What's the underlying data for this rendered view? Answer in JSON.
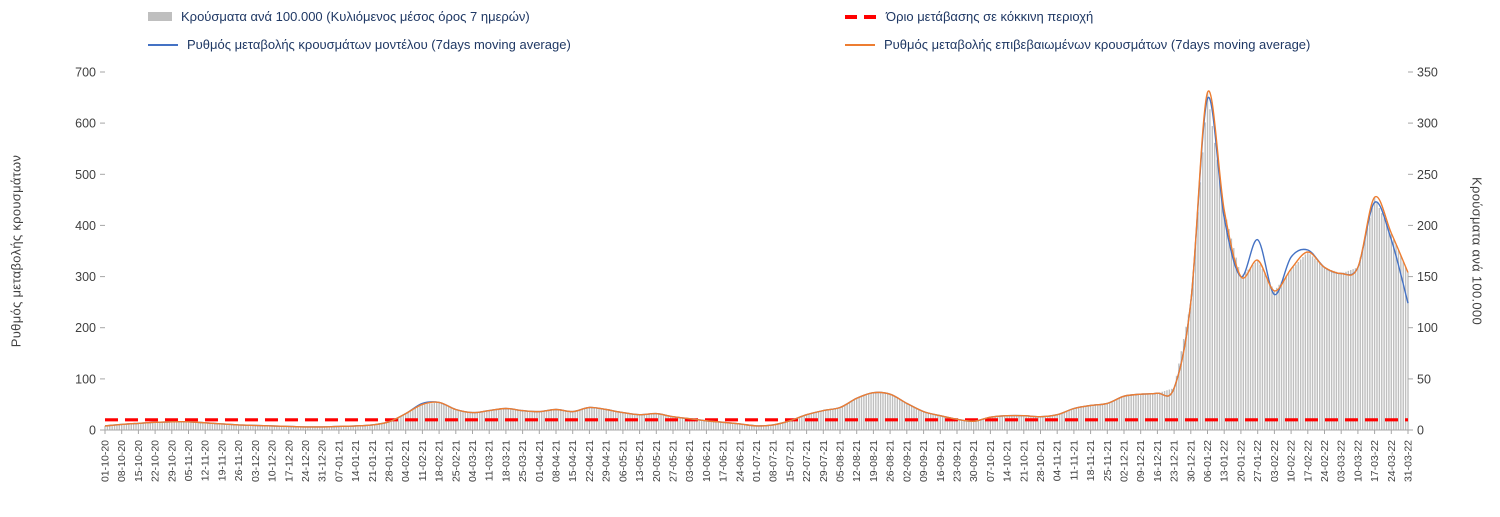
{
  "colors": {
    "bars": "#bfbfbf",
    "model": "#4472c4",
    "confirmed": "#ed7d31",
    "threshold": "#ff0000",
    "axis_text": "#404040",
    "legend_text": "#1f3864",
    "axis_line": "#a6a6a6"
  },
  "chart_data": {
    "type": "combo-bar-line",
    "legend_position": "top",
    "grid": false,
    "categories": [
      "01-10-20",
      "08-10-20",
      "15-10-20",
      "22-10-20",
      "29-10-20",
      "05-11-20",
      "12-11-20",
      "19-11-20",
      "26-11-20",
      "03-12-20",
      "10-12-20",
      "17-12-20",
      "24-12-20",
      "31-12-20",
      "07-01-21",
      "14-01-21",
      "21-01-21",
      "28-01-21",
      "04-02-21",
      "11-02-21",
      "18-02-21",
      "25-02-21",
      "04-03-21",
      "11-03-21",
      "18-03-21",
      "25-03-21",
      "01-04-21",
      "08-04-21",
      "15-04-21",
      "22-04-21",
      "29-04-21",
      "06-05-21",
      "13-05-21",
      "20-05-21",
      "27-05-21",
      "03-06-21",
      "10-06-21",
      "17-06-21",
      "24-06-21",
      "01-07-21",
      "08-07-21",
      "15-07-21",
      "22-07-21",
      "29-07-21",
      "05-08-21",
      "12-08-21",
      "19-08-21",
      "26-08-21",
      "02-09-21",
      "09-09-21",
      "16-09-21",
      "23-09-21",
      "30-09-21",
      "07-10-21",
      "14-10-21",
      "21-10-21",
      "28-10-21",
      "04-11-21",
      "11-11-21",
      "18-11-21",
      "25-11-21",
      "02-12-21",
      "09-12-21",
      "16-12-21",
      "23-12-21",
      "30-12-21",
      "06-01-22",
      "13-01-22",
      "20-01-22",
      "27-01-22",
      "03-02-22",
      "10-02-22",
      "17-02-22",
      "24-02-22",
      "03-03-22",
      "10-03-22",
      "17-03-22",
      "24-03-22",
      "31-03-22"
    ],
    "left_axis": {
      "label": "Ρυθμός μεταβολής κρουσμάτων",
      "min": 0,
      "max": 700,
      "ticks": [
        0,
        100,
        200,
        300,
        400,
        500,
        600,
        700
      ]
    },
    "right_axis": {
      "label": "Κρούσματα ανά 100.000",
      "min": 0,
      "max": 350,
      "ticks": [
        0,
        50,
        100,
        150,
        200,
        250,
        300,
        350
      ]
    },
    "series": [
      {
        "name": "Κρούσματα ανά 100.000 (Κυλιόμενος μέσος όρος 7 ημερών)",
        "type": "bar",
        "axis": "right",
        "values": [
          4,
          5.5,
          6.5,
          7.5,
          8,
          8,
          7,
          6,
          5,
          4.5,
          4,
          3.5,
          3,
          3,
          3.5,
          4,
          5,
          8,
          16,
          25,
          27,
          20,
          17,
          19,
          21,
          19,
          18,
          20,
          18,
          22,
          20,
          17,
          15,
          16,
          13,
          11,
          9,
          7.5,
          6,
          4,
          5,
          9,
          15,
          19,
          22,
          31,
          36.5,
          35,
          26,
          18,
          14,
          10.5,
          8.5,
          12.5,
          14,
          14,
          13,
          15,
          21,
          24,
          26,
          33,
          35,
          36,
          41,
          125,
          330,
          215,
          150,
          166,
          136,
          157,
          174,
          159,
          153,
          159,
          227,
          192,
          154
        ]
      },
      {
        "name": "Ρυθμός μεταβολής κρουσμάτων μοντέλου (7days moving average)",
        "type": "line",
        "axis": "left",
        "values": [
          8,
          11,
          13,
          15,
          16,
          16,
          14,
          12,
          10,
          9,
          8,
          7,
          6,
          6,
          7,
          8,
          10,
          16,
          32,
          52,
          54,
          40,
          34,
          38,
          42,
          38,
          36,
          40,
          36,
          44,
          40,
          34,
          30,
          32,
          26,
          22,
          18,
          15,
          12,
          8,
          10,
          18,
          30,
          38,
          44,
          62,
          73,
          70,
          52,
          36,
          28,
          21,
          17,
          25,
          28,
          28,
          26,
          30,
          42,
          48,
          52,
          66,
          70,
          72,
          82,
          250,
          648,
          415,
          300,
          372,
          265,
          338,
          352,
          318,
          306,
          318,
          445,
          372,
          248
        ]
      },
      {
        "name": "Ρυθμός μεταβολής επιβεβαιωμένων κρουσμάτων (7days moving average)",
        "type": "line",
        "axis": "left",
        "values": [
          8,
          11,
          13,
          15,
          16,
          16,
          14,
          12,
          10,
          9,
          8,
          7,
          6,
          6,
          7,
          8,
          10,
          16,
          32,
          50,
          54,
          40,
          34,
          38,
          42,
          38,
          36,
          40,
          36,
          44,
          40,
          34,
          30,
          32,
          26,
          22,
          18,
          15,
          12,
          8,
          10,
          18,
          30,
          38,
          44,
          62,
          73,
          70,
          52,
          36,
          28,
          21,
          17,
          25,
          28,
          28,
          26,
          30,
          42,
          48,
          52,
          66,
          70,
          72,
          82,
          250,
          660,
          430,
          300,
          332,
          272,
          315,
          348,
          318,
          306,
          318,
          455,
          385,
          308
        ]
      },
      {
        "name": "Όριο μετάβασης σε κόκκινη περιοχή",
        "type": "threshold",
        "axis": "left",
        "value": 20
      }
    ]
  }
}
